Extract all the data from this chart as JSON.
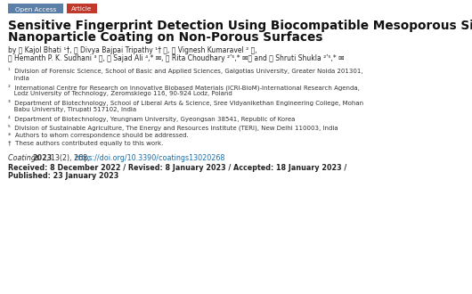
{
  "bg_color": "#ffffff",
  "tag_open_access_bg": "#5b7fa6",
  "tag_article_bg": "#c0392b",
  "tag_open_access_text": "Open Access",
  "tag_article_text": "Article",
  "title_line1": "Sensitive Fingerprint Detection Using Biocompatible Mesoporous Silica",
  "title_line2": "Nanoparticle Coating on Non-Porous Surfaces",
  "author_line1": "by ⓐ Kajol Bhati ¹†, ⓐ Divya Bajpai Tripathy ¹† ⓘ, ⓘ Vignesh Kumaravel ² ⓘ,",
  "author_line2": "ⓐ Hemanth P. K. Sudhani ³ ⓘ, ⓐ Sajad Ali ⁴,* ✉, ⓐ Rita Choudhary ²ʹ⁵,* ✉ⓘ and ⓐ Shruti Shukla ²ʹ⁵,* ✉",
  "aff1": "¹  Division of Forensic Science, School of Basic and Applied Sciences, Galgotias University, Greater Noida 201301,",
  "aff1b": "   India",
  "aff2": "²  International Centre for Research on Innovative Biobased Materials (ICRI-BioM)-International Research Agenda,",
  "aff2b": "   Lodz University of Technology, Zeromskiego 116, 90-924 Lodz, Poland",
  "aff3": "³  Department of Biotechnology, School of Liberal Arts & Science, Sree Vidyanikethan Engineering College, Mohan",
  "aff3b": "   Babu University, Tirupati 517102, India",
  "aff4": "⁴  Department of Biotechnology, Yeungnam University, Gyeongsan 38541, Republic of Korea",
  "aff5": "⁵  Division of Sustainable Agriculture, The Energy and Resources Institute (TERI), New Delhi 110003, India",
  "note1": "*  Authors to whom correspondence should be addressed.",
  "note2": "†  These authors contributed equally to this work.",
  "journal_italic": "Coatings ",
  "journal_bold": "2023",
  "journal_rest": ", 13(2), 268; ",
  "journal_doi": "https://doi.org/10.3390/coatings13020268",
  "journal_doi_color": "#1a6ca8",
  "dates_bold1": "Received: 8 December 2022 / Revised: 8 January 2023 / Accepted: 18 January 2023 /",
  "dates_bold2": "Published: 23 January 2023",
  "text_color": "#222222",
  "aff_color": "#333333"
}
